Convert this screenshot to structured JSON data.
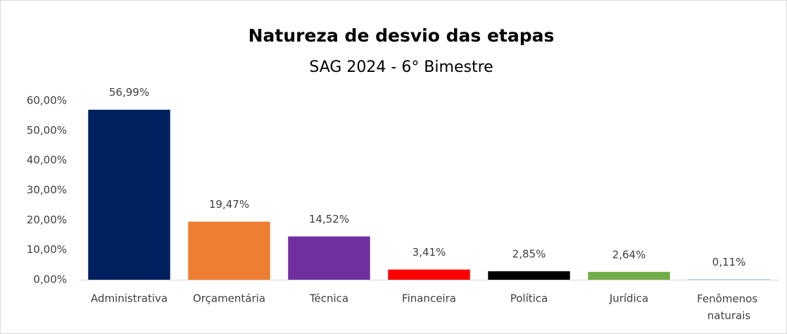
{
  "chart_data": {
    "type": "bar",
    "title": "Natureza de desvio das etapas",
    "subtitle": "SAG 2024 - 6° Bimestre",
    "categories": [
      "Administrativa",
      "Orçamentária",
      "Técnica",
      "Financeira",
      "Política",
      "Jurídica",
      "Fenômenos naturais"
    ],
    "values": [
      56.99,
      19.47,
      14.52,
      3.41,
      2.85,
      2.64,
      0.11
    ],
    "value_labels": [
      "56,99%",
      "19,47%",
      "14,52%",
      "3,41%",
      "2,85%",
      "2,64%",
      "0,11%"
    ],
    "colors": [
      "#002060",
      "#ed7d31",
      "#7030a0",
      "#ff0000",
      "#000000",
      "#70ad47",
      "#5b9bd5"
    ],
    "ylim": [
      0,
      60
    ],
    "yticks": [
      {
        "value": 0,
        "label": "0,00%"
      },
      {
        "value": 10,
        "label": "10,00%"
      },
      {
        "value": 20,
        "label": "20,00%"
      },
      {
        "value": 30,
        "label": "30,00%"
      },
      {
        "value": 40,
        "label": "40,00%"
      },
      {
        "value": 50,
        "label": "50,00%"
      },
      {
        "value": 60,
        "label": "60,00%"
      }
    ],
    "grid": false
  }
}
